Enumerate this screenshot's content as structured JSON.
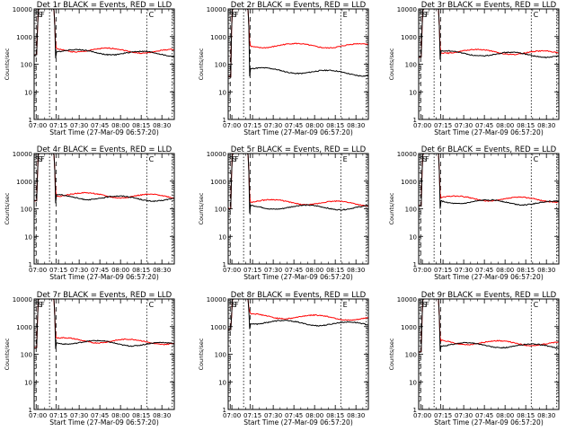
{
  "colors": {
    "events": "#000000",
    "lld": "#ff0000"
  },
  "chart_data": [
    {
      "type": "line",
      "title": "Det 1r BLACK = Events, RED = LLD",
      "xlabel": "Start Time (27-Mar-09 06:57:20)",
      "ylabel": "Counts/sec",
      "yscale": "log",
      "ylim": [
        1,
        10000
      ],
      "xticks": [
        "07:00",
        "07:15",
        "07:30",
        "07:45",
        "08:00",
        "08:15",
        "08:30"
      ],
      "yticks": [
        "1",
        "10",
        "100",
        "1000",
        "10000"
      ],
      "flag_labels": [
        "S",
        "S",
        "F",
        "C"
      ],
      "levels": {
        "events": 300,
        "lld": 350,
        "events_end": 230,
        "lld_end": 290,
        "quiet": 220
      },
      "series": []
    },
    {
      "type": "line",
      "title": "Det 2r BLACK = Events, RED = LLD",
      "xlabel": "Start Time (27-Mar-09 06:57:20)",
      "ylabel": "Counts/sec",
      "yscale": "log",
      "ylim": [
        1,
        10000
      ],
      "xticks": [
        "07:00",
        "07:15",
        "07:30",
        "07:45",
        "08:00",
        "08:15",
        "08:30"
      ],
      "yticks": [
        "1",
        "10",
        "100",
        "1000",
        "10000"
      ],
      "flag_labels": [
        "S",
        "S",
        "F",
        "E"
      ],
      "levels": {
        "events": 65,
        "lld": 480,
        "events_end": 45,
        "lld_end": 470,
        "quiet": 35
      },
      "series": []
    },
    {
      "type": "line",
      "title": "Det 3r BLACK = Events, RED = LLD",
      "xlabel": "Start Time (27-Mar-09 06:57:20)",
      "ylabel": "Counts/sec",
      "yscale": "log",
      "ylim": [
        1,
        10000
      ],
      "xticks": [
        "07:00",
        "07:15",
        "07:30",
        "07:45",
        "08:00",
        "08:15",
        "08:30"
      ],
      "yticks": [
        "1",
        "10",
        "100",
        "1000",
        "10000"
      ],
      "flag_labels": [
        "S",
        "S",
        "F",
        "C"
      ],
      "levels": {
        "events": 260,
        "lld": 310,
        "events_end": 210,
        "lld_end": 250,
        "quiet": 180
      },
      "series": []
    },
    {
      "type": "line",
      "title": "Det 4r BLACK = Events, RED = LLD",
      "xlabel": "Start Time (27-Mar-09 06:57:20)",
      "ylabel": "Counts/sec",
      "yscale": "log",
      "ylim": [
        1,
        10000
      ],
      "xticks": [
        "07:00",
        "07:15",
        "07:30",
        "07:45",
        "08:00",
        "08:15",
        "08:30"
      ],
      "yticks": [
        "1",
        "10",
        "100",
        "1000",
        "10000"
      ],
      "flag_labels": [
        "S",
        "S",
        "F",
        "C"
      ],
      "levels": {
        "events": 280,
        "lld": 340,
        "events_end": 220,
        "lld_end": 270,
        "quiet": 200
      },
      "series": []
    },
    {
      "type": "line",
      "title": "Det 5r BLACK = Events, RED = LLD",
      "xlabel": "Start Time (27-Mar-09 06:57:20)",
      "ylabel": "Counts/sec",
      "yscale": "log",
      "ylim": [
        1,
        10000
      ],
      "xticks": [
        "07:00",
        "07:15",
        "07:30",
        "07:45",
        "08:00",
        "08:15",
        "08:30"
      ],
      "yticks": [
        "1",
        "10",
        "100",
        "1000",
        "10000"
      ],
      "flag_labels": [
        "S",
        "S",
        "F",
        "E"
      ],
      "levels": {
        "events": 120,
        "lld": 190,
        "events_end": 110,
        "lld_end": 150,
        "quiet": 100
      },
      "series": []
    },
    {
      "type": "line",
      "title": "Det 6r BLACK = Events, RED = LLD",
      "xlabel": "Start Time (27-Mar-09 06:57:20)",
      "ylabel": "Counts/sec",
      "yscale": "log",
      "ylim": [
        1,
        10000
      ],
      "xticks": [
        "07:00",
        "07:15",
        "07:30",
        "07:45",
        "08:00",
        "08:15",
        "08:30"
      ],
      "yticks": [
        "1",
        "10",
        "100",
        "1000",
        "10000"
      ],
      "flag_labels": [
        "S",
        "S",
        "F",
        "C"
      ],
      "levels": {
        "events": 190,
        "lld": 250,
        "events_end": 160,
        "lld_end": 210,
        "quiet": 130
      },
      "series": []
    },
    {
      "type": "line",
      "title": "Det 7r BLACK = Events, RED = LLD",
      "xlabel": "Start Time (27-Mar-09 06:57:20)",
      "ylabel": "Counts/sec",
      "yscale": "log",
      "ylim": [
        1,
        10000
      ],
      "xticks": [
        "07:00",
        "07:15",
        "07:30",
        "07:45",
        "08:00",
        "08:15",
        "08:30"
      ],
      "yticks": [
        "1",
        "10",
        "100",
        "1000",
        "10000"
      ],
      "flag_labels": [
        "S",
        "S",
        "F",
        "C"
      ],
      "levels": {
        "events": 290,
        "lld": 340,
        "events_end": 220,
        "lld_end": 270,
        "quiet": 170
      },
      "series": []
    },
    {
      "type": "line",
      "title": "Det 8r BLACK = Events, RED = LLD",
      "xlabel": "Start Time (27-Mar-09 06:57:20)",
      "ylabel": "Counts/sec",
      "yscale": "log",
      "ylim": [
        1,
        10000
      ],
      "xticks": [
        "07:00",
        "07:15",
        "07:30",
        "07:45",
        "08:00",
        "08:15",
        "08:30"
      ],
      "yticks": [
        "1",
        "10",
        "100",
        "1000",
        "10000"
      ],
      "flag_labels": [
        "S",
        "S",
        "F",
        "E"
      ],
      "levels": {
        "events": 1500,
        "lld": 2500,
        "events_end": 1200,
        "lld_end": 2000,
        "quiet": 800
      },
      "series": []
    },
    {
      "type": "line",
      "title": "Det 9r BLACK = Events, RED = LLD",
      "xlabel": "Start Time (27-Mar-09 06:57:20)",
      "ylabel": "Counts/sec",
      "yscale": "log",
      "ylim": [
        1,
        10000
      ],
      "xticks": [
        "07:00",
        "07:15",
        "07:30",
        "07:45",
        "08:00",
        "08:15",
        "08:30"
      ],
      "yticks": [
        "1",
        "10",
        "100",
        "1000",
        "10000"
      ],
      "flag_labels": [
        "S",
        "S",
        "F",
        "C"
      ],
      "levels": {
        "events": 230,
        "lld": 280,
        "events_end": 190,
        "lld_end": 240,
        "quiet": 120
      },
      "series": []
    }
  ]
}
